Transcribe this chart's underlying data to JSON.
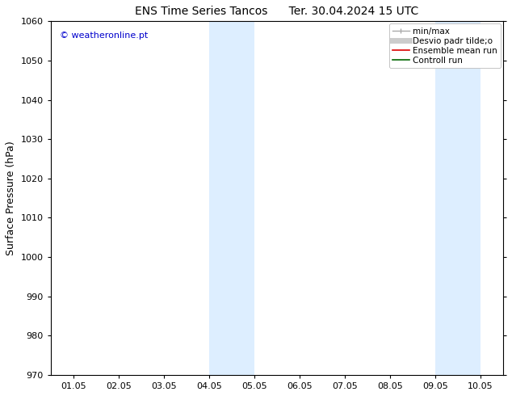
{
  "title_left": "ENS Time Series Tancos",
  "title_right": "Ter. 30.04.2024 15 UTC",
  "ylabel": "Surface Pressure (hPa)",
  "ylim": [
    970,
    1060
  ],
  "yticks": [
    970,
    980,
    990,
    1000,
    1010,
    1020,
    1030,
    1040,
    1050,
    1060
  ],
  "xlim": [
    0,
    9
  ],
  "xtick_labels": [
    "01.05",
    "02.05",
    "03.05",
    "04.05",
    "05.05",
    "06.05",
    "07.05",
    "08.05",
    "09.05",
    "10.05"
  ],
  "xtick_positions": [
    0,
    1,
    2,
    3,
    4,
    5,
    6,
    7,
    8,
    9
  ],
  "shaded_bands": [
    {
      "xmin": 3.0,
      "xmax": 4.0
    },
    {
      "xmin": 8.0,
      "xmax": 9.0
    }
  ],
  "shade_color": "#ddeeff",
  "watermark": "© weatheronline.pt",
  "watermark_color": "#0000cc",
  "bg_color": "#ffffff",
  "tick_color": "#000000",
  "spine_color": "#000000",
  "title_fontsize": 10,
  "label_fontsize": 8,
  "watermark_fontsize": 8,
  "legend_fontsize": 7.5
}
